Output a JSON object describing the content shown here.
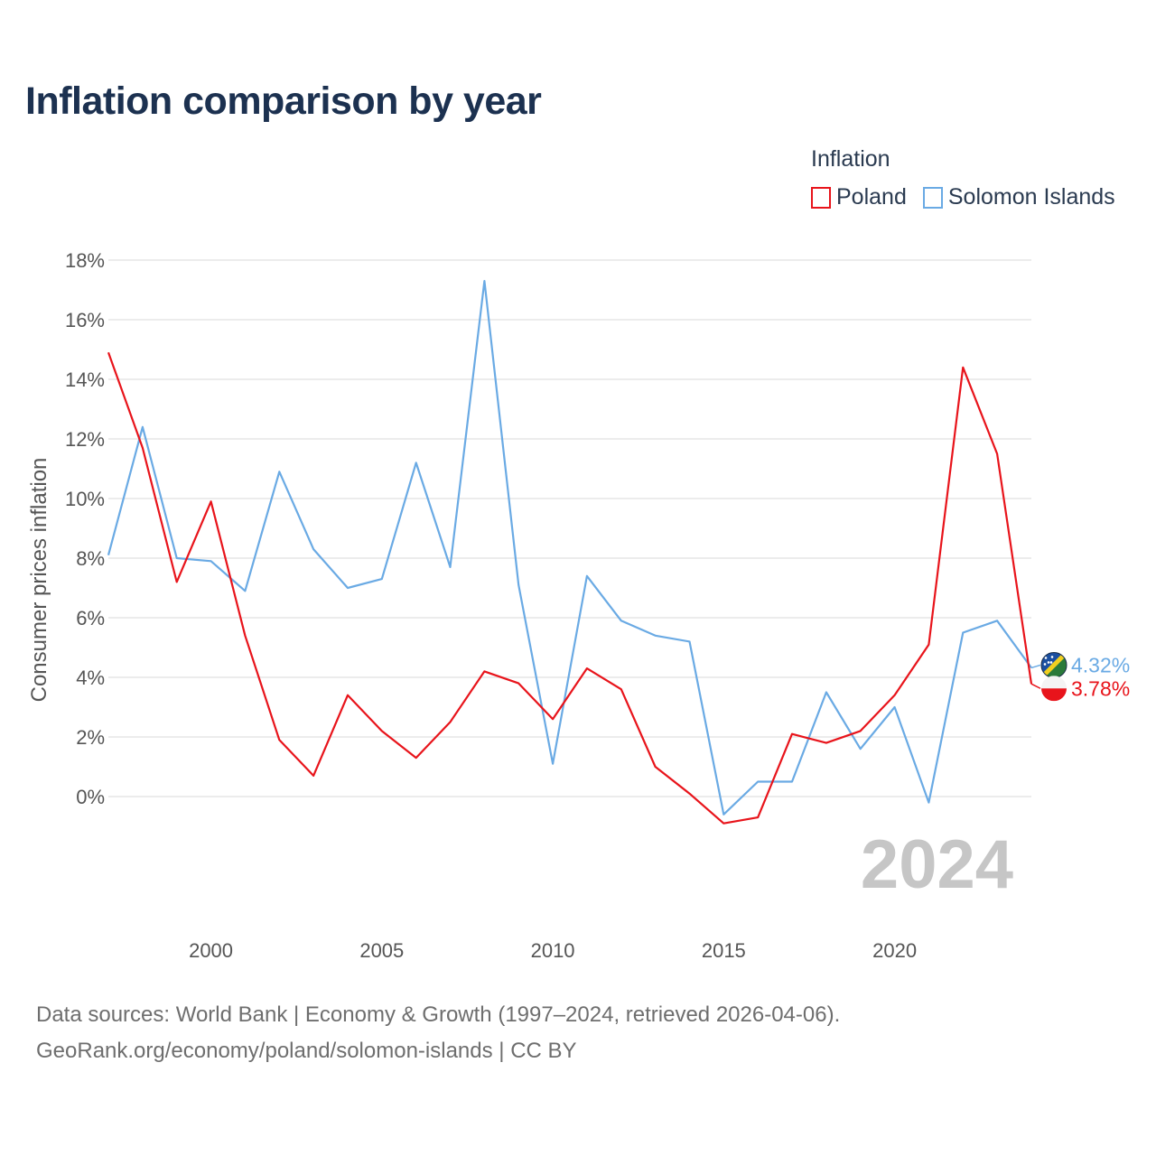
{
  "title": "Inflation comparison by year",
  "legend": {
    "title": "Inflation",
    "items": [
      {
        "label": "Poland",
        "color": "#e8141b"
      },
      {
        "label": "Solomon Islands",
        "color": "#6aaae4"
      }
    ]
  },
  "source": {
    "line1": "Data sources: World Bank | Economy & Growth (1997–2024, retrieved 2026-04-06).",
    "line2": "GeoRank.org/economy/poland/solomon-islands | CC BY"
  },
  "chart_data": {
    "type": "line",
    "title": "Inflation comparison by year",
    "xlabel": "",
    "ylabel": "Consumer prices inflation",
    "x": [
      1997,
      1998,
      1999,
      2000,
      2001,
      2002,
      2003,
      2004,
      2005,
      2006,
      2007,
      2008,
      2009,
      2010,
      2011,
      2012,
      2013,
      2014,
      2015,
      2016,
      2017,
      2018,
      2019,
      2020,
      2021,
      2022,
      2023,
      2024
    ],
    "xlim": [
      1997,
      2024
    ],
    "ylim": [
      -4,
      18
    ],
    "x_ticks": [
      2000,
      2005,
      2010,
      2015,
      2020
    ],
    "y_ticks": [
      0,
      2,
      4,
      6,
      8,
      10,
      12,
      14,
      16,
      18
    ],
    "y_tick_labels": [
      "0%",
      "2%",
      "4%",
      "6%",
      "8%",
      "10%",
      "12%",
      "14%",
      "16%",
      "18%"
    ],
    "grid": true,
    "legend_position": "top-right",
    "watermark_year": "2024",
    "series": [
      {
        "name": "Poland",
        "color": "#e8141b",
        "values": [
          14.9,
          11.7,
          7.2,
          9.9,
          5.4,
          1.9,
          0.7,
          3.4,
          2.2,
          1.3,
          2.5,
          4.2,
          3.8,
          2.6,
          4.3,
          3.6,
          1.0,
          0.1,
          -0.9,
          -0.7,
          2.1,
          1.8,
          2.2,
          3.4,
          5.1,
          14.4,
          11.5,
          3.78
        ],
        "end_label": "3.78%"
      },
      {
        "name": "Solomon Islands",
        "color": "#6aaae4",
        "values": [
          8.1,
          12.4,
          8.0,
          7.9,
          6.9,
          10.9,
          8.3,
          7.0,
          7.3,
          11.2,
          7.7,
          17.3,
          7.1,
          1.1,
          7.4,
          5.9,
          5.4,
          5.2,
          -0.6,
          0.5,
          0.5,
          3.5,
          1.6,
          3.0,
          -0.2,
          5.5,
          5.9,
          4.32
        ],
        "end_label": "4.32%"
      }
    ]
  }
}
